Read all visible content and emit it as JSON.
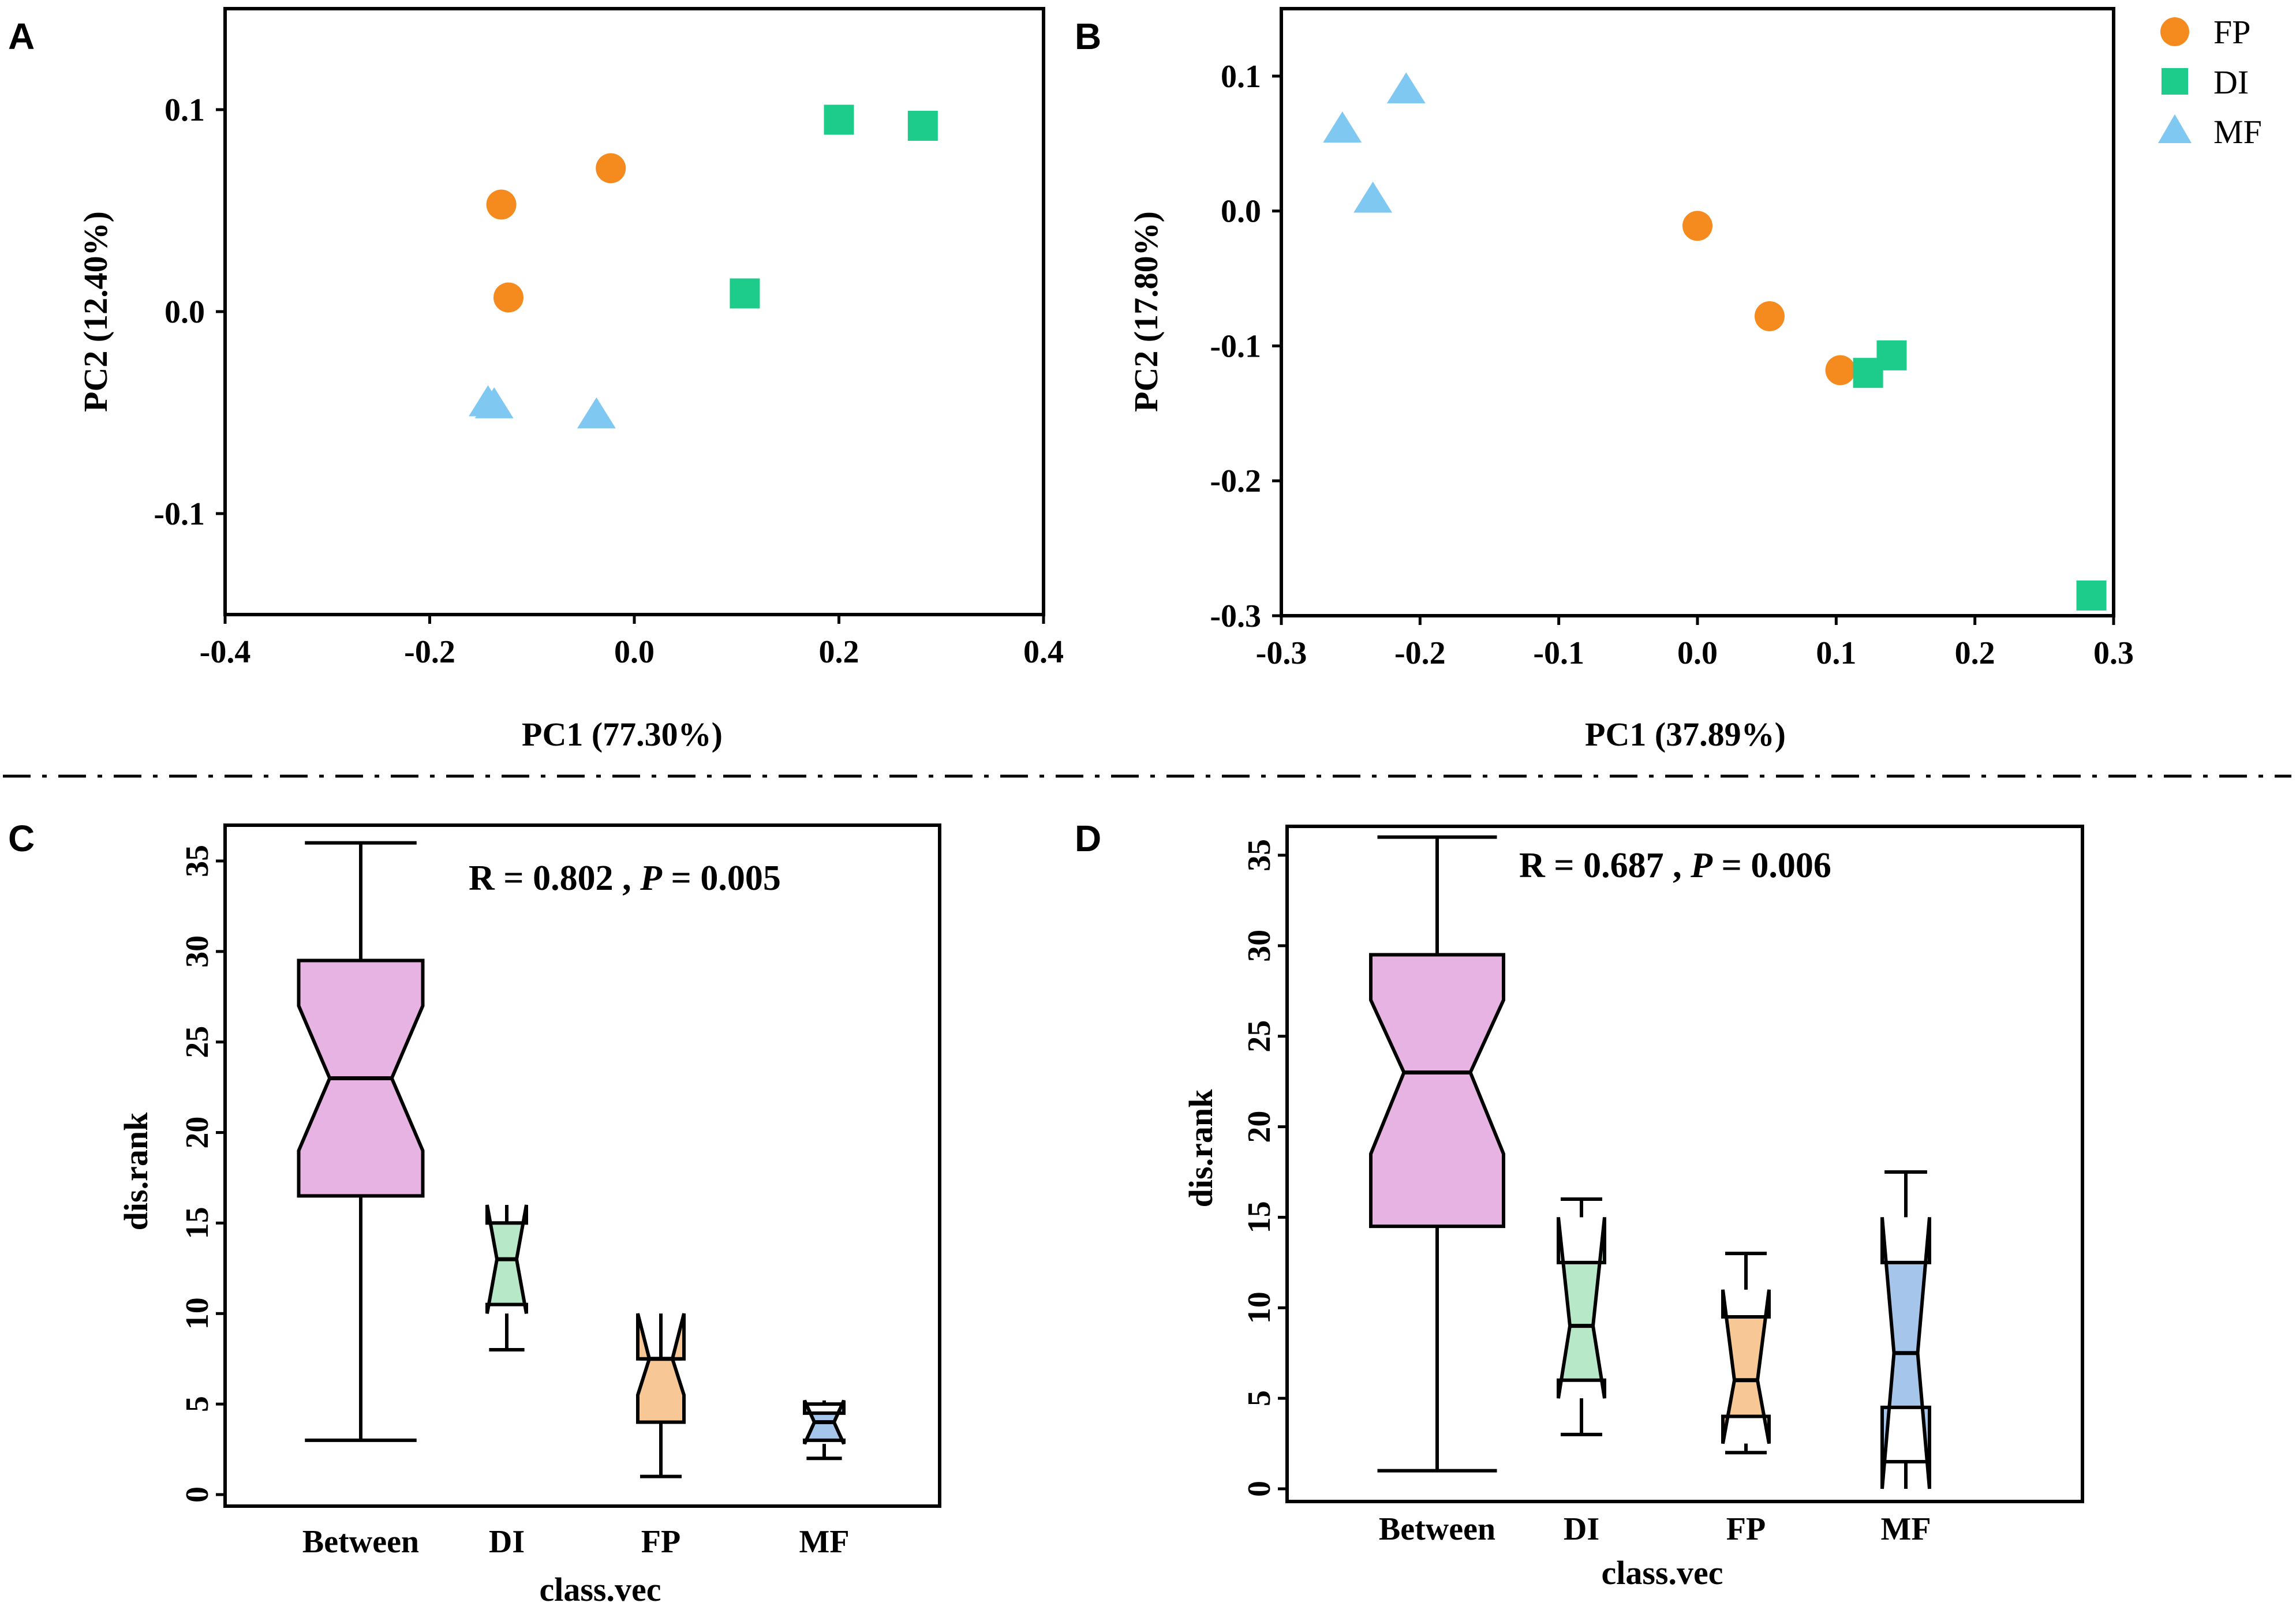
{
  "panels": {
    "A": "A",
    "B": "B",
    "C": "C",
    "D": "D"
  },
  "colors": {
    "FP": "#F58A1E",
    "DI": "#1DCB8A",
    "MF": "#7FC8F2",
    "between_box": "#E7B3E2",
    "di_box": "#B7E9C8",
    "fp_box": "#F7C795",
    "mf_box": "#A6C5EA"
  },
  "legend": {
    "items": [
      {
        "label": "FP",
        "shape": "circle"
      },
      {
        "label": "DI",
        "shape": "square"
      },
      {
        "label": "MF",
        "shape": "triangle"
      }
    ]
  },
  "chart_data": [
    {
      "panel": "A",
      "type": "scatter",
      "xlabel": "PC1 (77.30%)",
      "ylabel": "PC2  (12.40%)",
      "xlim": [
        -0.4,
        0.4
      ],
      "ylim": [
        -0.15,
        0.15
      ],
      "xticks": [
        -0.4,
        -0.2,
        0.0,
        0.2,
        0.4
      ],
      "xtick_labels": [
        "-0.4",
        "-0.2",
        "0.0",
        "0.2",
        "0.4"
      ],
      "yticks": [
        0.1,
        0.0,
        -0.1
      ],
      "ytick_labels": [
        "0.1",
        "0.0",
        "-0.1"
      ],
      "series": [
        {
          "name": "FP",
          "points": [
            [
              -0.13,
              0.053
            ],
            [
              -0.023,
              0.071
            ],
            [
              -0.123,
              0.007
            ]
          ]
        },
        {
          "name": "DI",
          "points": [
            [
              0.2,
              0.095
            ],
            [
              0.282,
              0.092
            ],
            [
              0.108,
              0.009
            ]
          ]
        },
        {
          "name": "MF",
          "points": [
            [
              -0.143,
              -0.045
            ],
            [
              -0.137,
              -0.046
            ],
            [
              -0.037,
              -0.051
            ]
          ]
        }
      ]
    },
    {
      "panel": "B",
      "type": "scatter",
      "xlabel": "PC1 (37.89%)",
      "ylabel": "PC2  (17.80%)",
      "xlim": [
        -0.3,
        0.3
      ],
      "ylim": [
        -0.3,
        0.15
      ],
      "xticks": [
        -0.3,
        -0.2,
        -0.1,
        0.0,
        0.1,
        0.2,
        0.3
      ],
      "xtick_labels": [
        "-0.3",
        "-0.2",
        "-0.1",
        "0.0",
        "0.1",
        "0.2",
        "0.3"
      ],
      "yticks": [
        0.1,
        0.0,
        -0.1,
        -0.2,
        -0.3
      ],
      "ytick_labels": [
        "0.1",
        "0.0",
        "-0.1",
        "-0.2",
        "-0.3"
      ],
      "series": [
        {
          "name": "FP",
          "points": [
            [
              0.0,
              -0.011
            ],
            [
              0.052,
              -0.078
            ],
            [
              0.103,
              -0.118
            ]
          ]
        },
        {
          "name": "DI",
          "points": [
            [
              0.14,
              -0.107
            ],
            [
              0.123,
              -0.12
            ],
            [
              0.284,
              -0.285
            ]
          ]
        },
        {
          "name": "MF",
          "points": [
            [
              -0.256,
              0.061
            ],
            [
              -0.21,
              0.09
            ],
            [
              -0.234,
              0.009
            ]
          ]
        }
      ]
    },
    {
      "panel": "C",
      "type": "box",
      "title": "R = 0.802 , P = 0.005",
      "stat": {
        "r_label": "R = ",
        "r_value": "0.802",
        "sep": " , ",
        "p_label": "P",
        "p_eq": " = ",
        "p_value": "0.005"
      },
      "xlabel": "class.vec",
      "ylabel": "dis.rank",
      "ylim": [
        0,
        36
      ],
      "yticks": [
        0,
        5,
        10,
        15,
        20,
        25,
        30,
        35
      ],
      "ytick_labels": [
        "0",
        "5",
        "10",
        "15",
        "20",
        "25",
        "30",
        "35"
      ],
      "categories": [
        "Between",
        "DI",
        "FP",
        "MF"
      ],
      "boxes": [
        {
          "name": "Between",
          "min": 3,
          "q1": 16.5,
          "median": 23,
          "q3": 29.5,
          "max": 36,
          "notch_lo": 19,
          "notch_hi": 27,
          "color": "between_box"
        },
        {
          "name": "DI",
          "min": 8,
          "q1": 10.5,
          "median": 13,
          "q3": 15,
          "max": 15,
          "notch_lo": 10,
          "notch_hi": 16,
          "color": "di_box"
        },
        {
          "name": "FP",
          "min": 1,
          "q1": 4,
          "median": 7.5,
          "q3": 7.5,
          "max": 7.5,
          "notch_lo": 5.5,
          "notch_hi": 10,
          "color": "fp_box"
        },
        {
          "name": "MF",
          "min": 2,
          "q1": 3,
          "median": 4,
          "q3": 4.5,
          "max": 5,
          "notch_lo": 2.8,
          "notch_hi": 5.2,
          "color": "mf_box"
        }
      ]
    },
    {
      "panel": "D",
      "type": "box",
      "title": "R = 0.687 , P = 0.006",
      "stat": {
        "r_label": "R = ",
        "r_value": "0.687",
        "sep": " , ",
        "p_label": "P",
        "p_eq": " = ",
        "p_value": "0.006"
      },
      "xlabel": "class.vec",
      "ylabel": "dis.rank",
      "ylim": [
        0,
        36
      ],
      "yticks": [
        0,
        5,
        10,
        15,
        20,
        25,
        30,
        35
      ],
      "ytick_labels": [
        "0",
        "5",
        "10",
        "15",
        "20",
        "25",
        "30",
        "35"
      ],
      "categories": [
        "Between",
        "DI",
        "FP",
        "MF"
      ],
      "boxes": [
        {
          "name": "Between",
          "min": 1,
          "q1": 14.5,
          "median": 23,
          "q3": 29.5,
          "max": 36,
          "notch_lo": 18.5,
          "notch_hi": 27,
          "color": "between_box"
        },
        {
          "name": "DI",
          "min": 3,
          "q1": 6,
          "median": 9,
          "q3": 12.5,
          "max": 16,
          "notch_lo": 5,
          "notch_hi": 15,
          "color": "di_box"
        },
        {
          "name": "FP",
          "min": 2,
          "q1": 4,
          "median": 6,
          "q3": 9.5,
          "max": 13,
          "notch_lo": 2.5,
          "notch_hi": 11,
          "color": "fp_box"
        },
        {
          "name": "MF",
          "min": 1.5,
          "q1": 4.5,
          "median": 7.5,
          "q3": 12.5,
          "max": 17.5,
          "notch_lo": 0,
          "notch_hi": 15,
          "color": "mf_box"
        }
      ]
    }
  ]
}
